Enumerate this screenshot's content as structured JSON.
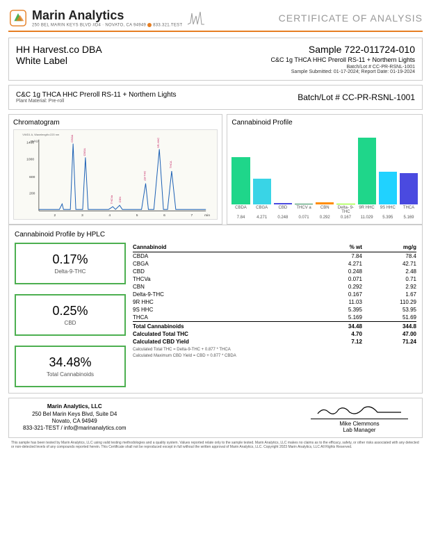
{
  "header": {
    "company": "Marin Analytics",
    "address": "250 BEL MARIN KEYS BLVD #D4 · NOVATO, CA 94949",
    "phone": "833.321.TEST",
    "coa": "CERTIFICATE OF ANALYSIS"
  },
  "client": {
    "line1": "HH Harvest.co DBA",
    "line2": "White Label"
  },
  "sample": {
    "id": "Sample 722-011724-010",
    "desc": "C&C 1g THCA HHC Preroll RS-11 + Northern Lights",
    "batch_small": "Batch/Lot # CC-PR-RSNL-1001",
    "dates": "Sample Submitted: 01-17-2024;  Report Date: 01-19-2024"
  },
  "product": {
    "name": "C&C 1g THCA HHC Preroll RS-11 + Northern Lights",
    "material": "Plant Material: Pre-roll"
  },
  "batch": "Batch/Lot # CC-PR-RSNL-1001",
  "chromatogram": {
    "title": "Chromatogram"
  },
  "profile": {
    "title": "Cannabinoid Profile",
    "max": 11.5,
    "bars": [
      {
        "label": "CBDA",
        "val": 7.84,
        "color": "#1fd68a"
      },
      {
        "label": "CBGA",
        "val": 4.271,
        "color": "#39d4e6"
      },
      {
        "label": "CBD",
        "val": 0.248,
        "color": "#4a4ae0"
      },
      {
        "label": "THCV a",
        "val": 0.071,
        "color": "#2e8b57"
      },
      {
        "label": "CBN",
        "val": 0.292,
        "color": "#ff8c00"
      },
      {
        "label": "Delta- 9-THC",
        "val": 0.167,
        "color": "#7fff00"
      },
      {
        "label": "9R HHC",
        "val": 11.029,
        "color": "#1fd68a"
      },
      {
        "label": "9S HHC",
        "val": 5.395,
        "color": "#20d2ff"
      },
      {
        "label": "THCA",
        "val": 5.169,
        "color": "#4a4ae0"
      }
    ]
  },
  "hplc": {
    "title": "Cannabinoid Profile by HPLC",
    "summary": [
      {
        "val": "0.17%",
        "label": "Delta-9-THC"
      },
      {
        "val": "0.25%",
        "label": "CBD"
      },
      {
        "val": "34.48%",
        "label": "Total Cannabinoids"
      }
    ],
    "headers": {
      "c1": "Cannabinoid",
      "c2": "% wt",
      "c3": "mg/g"
    },
    "rows": [
      {
        "n": "CBDA",
        "w": "7.84",
        "m": "78.4"
      },
      {
        "n": "CBGA",
        "w": "4.271",
        "m": "42.71"
      },
      {
        "n": "CBD",
        "w": "0.248",
        "m": "2.48"
      },
      {
        "n": "THCVa",
        "w": "0.071",
        "m": "0.71"
      },
      {
        "n": "CBN",
        "w": "0.292",
        "m": "2.92"
      },
      {
        "n": "Delta-9-THC",
        "w": "0.167",
        "m": "1.67"
      },
      {
        "n": "9R HHC",
        "w": "11.03",
        "m": "110.29"
      },
      {
        "n": "9S HHC",
        "w": "5.395",
        "m": "53.95"
      },
      {
        "n": "THCA",
        "w": "5.169",
        "m": "51.69"
      }
    ],
    "total": {
      "n": "Total Cannabinoids",
      "w": "34.48",
      "m": "344.8"
    },
    "calc": [
      {
        "n": "Calculated Total THC",
        "w": "4.70",
        "m": "47.00"
      },
      {
        "n": "Calculated CBD Yield",
        "w": "7.12",
        "m": "71.24"
      }
    ],
    "formula1": "Calculated Total THC = Delta-9-THC + 0.877 * THCA",
    "formula2": "Calculated Maximum CBD Yield = CBD + 0.877 * CBDA"
  },
  "footer": {
    "name": "Marin Analytics, LLC",
    "addr1": "250 Bel Marin Keys Blvd, Suite D4",
    "addr2": "Novato, CA  94949",
    "contact": "833-321-TEST / info@marinanalytics.com",
    "sig_name": "Mike Clemmons",
    "sig_title": "Lab Manager"
  },
  "disclaimer": "This sample has been tested by Marin Analytics, LLC using valid testing methodologies and a quality system. Values reported relate only to the sample tested. Marin Analytics, LLC makes no claims as to the efficacy, safety, or other risks associated with any detected or non-detected levels of any compounds reported herein. This Certificate shall not be reproduced except in full without the written approval of Marin Analytics, LLC.    Copyright 2023 Marin Analytics, LLC All Rights Reserved."
}
